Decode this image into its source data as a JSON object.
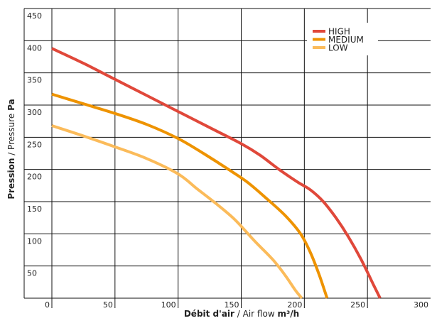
{
  "chart_data": {
    "type": "line",
    "xlabel": {
      "bold": "Débit d'air",
      "sep": " / ",
      "normal": "Air flow ",
      "unit": "m³/h"
    },
    "ylabel": {
      "bold": "Pression",
      "sep": " / ",
      "normal": "Pressure ",
      "unit": "Pa"
    },
    "xlim": [
      0,
      300
    ],
    "ylim": [
      0,
      450
    ],
    "xticks": [
      "0",
      "50",
      "100",
      "150",
      "200",
      "250",
      "300"
    ],
    "yticks": [
      "50",
      "100",
      "150",
      "200",
      "250",
      "300",
      "350",
      "400",
      "450"
    ],
    "grid": true,
    "legend_position": "top-right",
    "series": [
      {
        "name": "HIGH",
        "color": "#e0483a",
        "points": [
          [
            0,
            388
          ],
          [
            25,
            365
          ],
          [
            50,
            340
          ],
          [
            75,
            315
          ],
          [
            100,
            290
          ],
          [
            125,
            265
          ],
          [
            150,
            240
          ],
          [
            165,
            222
          ],
          [
            180,
            200
          ],
          [
            195,
            180
          ],
          [
            205,
            168
          ],
          [
            215,
            150
          ],
          [
            225,
            125
          ],
          [
            235,
            95
          ],
          [
            245,
            60
          ],
          [
            255,
            20
          ],
          [
            260,
            0
          ]
        ]
      },
      {
        "name": "MEDIUM",
        "color": "#ee9300",
        "points": [
          [
            0,
            317
          ],
          [
            25,
            302
          ],
          [
            50,
            287
          ],
          [
            75,
            270
          ],
          [
            100,
            248
          ],
          [
            120,
            225
          ],
          [
            140,
            200
          ],
          [
            155,
            180
          ],
          [
            170,
            155
          ],
          [
            185,
            128
          ],
          [
            197,
            100
          ],
          [
            205,
            70
          ],
          [
            212,
            35
          ],
          [
            218,
            0
          ]
        ]
      },
      {
        "name": "LOW",
        "color": "#fbbb5a",
        "points": [
          [
            0,
            268
          ],
          [
            25,
            252
          ],
          [
            50,
            235
          ],
          [
            75,
            217
          ],
          [
            100,
            193
          ],
          [
            115,
            170
          ],
          [
            130,
            147
          ],
          [
            145,
            122
          ],
          [
            160,
            90
          ],
          [
            175,
            60
          ],
          [
            185,
            35
          ],
          [
            193,
            12
          ],
          [
            198,
            0
          ]
        ]
      }
    ]
  }
}
